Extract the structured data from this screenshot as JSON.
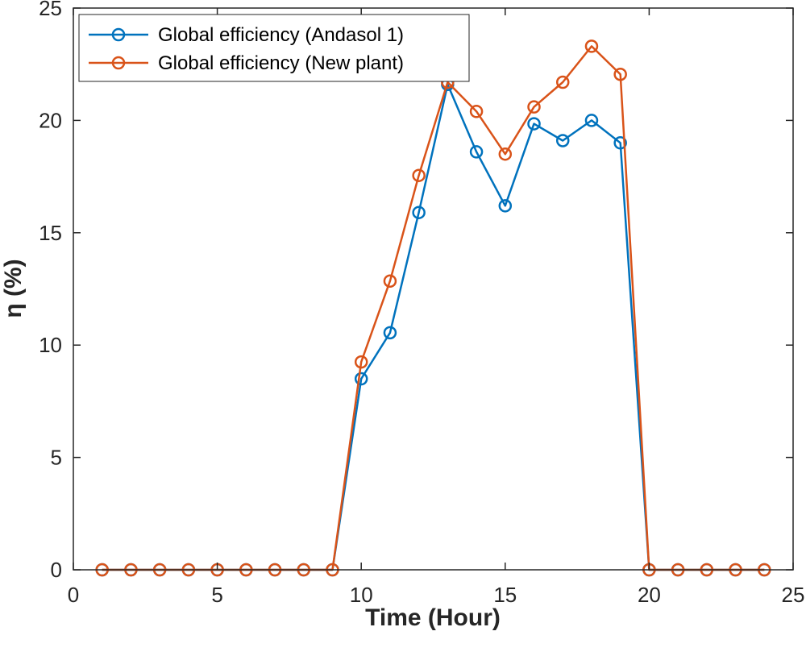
{
  "chart_data": {
    "type": "line",
    "title": "",
    "xlabel": "Time (Hour)",
    "ylabel": "η (%)",
    "xlim": [
      0,
      25
    ],
    "ylim": [
      0,
      25
    ],
    "xticks": [
      0,
      5,
      10,
      15,
      20,
      25
    ],
    "yticks": [
      0,
      5,
      10,
      15,
      20,
      25
    ],
    "grid": false,
    "legend_position": "top-left",
    "x": [
      1,
      2,
      3,
      4,
      5,
      6,
      7,
      8,
      9,
      10,
      11,
      12,
      13,
      14,
      15,
      16,
      17,
      18,
      19,
      20,
      21,
      22,
      23,
      24
    ],
    "series": [
      {
        "name": "Global efficiency (Andasol 1)",
        "color": "#0072BD",
        "marker": "circle",
        "values": [
          0,
          0,
          0,
          0,
          0,
          0,
          0,
          0,
          0,
          8.5,
          10.55,
          15.9,
          21.6,
          18.6,
          16.2,
          19.85,
          19.1,
          20.0,
          19.0,
          0,
          0,
          0,
          0,
          0
        ]
      },
      {
        "name": "Global efficiency (New plant)",
        "color": "#D95319",
        "marker": "circle",
        "values": [
          0,
          0,
          0,
          0,
          0,
          0,
          0,
          0,
          0,
          9.25,
          12.85,
          17.55,
          21.7,
          20.4,
          18.5,
          20.6,
          21.7,
          23.3,
          22.05,
          0,
          0,
          0,
          0,
          0
        ]
      }
    ]
  }
}
